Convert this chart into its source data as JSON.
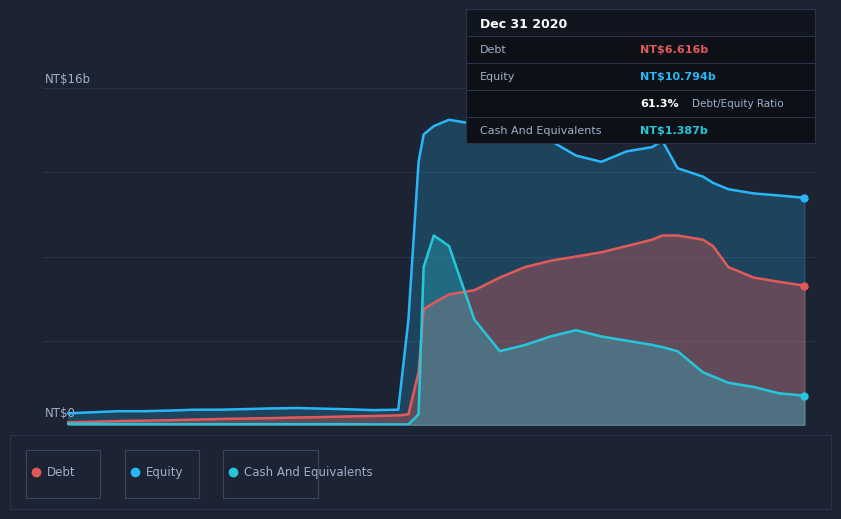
{
  "background_color": "#1c2333",
  "plot_bg_color": "#1c2333",
  "debt_color": "#e05a5a",
  "equity_color": "#29b6f6",
  "cash_color": "#26c6da",
  "grid_color": "#2a3347",
  "text_color": "#a0b0c8",
  "tooltip_bg": "#0d1117",
  "tooltip_border": "#2a3347",
  "title": "Dec 31 2020",
  "debt_label": "Debt",
  "equity_label": "Equity",
  "cash_label": "Cash And Equivalents",
  "debt_value": "NT$6.616b",
  "equity_value": "NT$10.794b",
  "ratio_value": "61.3%",
  "ratio_label": "Debt/Equity Ratio",
  "cash_value": "NT$1.387b",
  "x_years": [
    2013.75,
    2014.0,
    2014.25,
    2014.5,
    2014.75,
    2015.0,
    2015.25,
    2015.5,
    2015.75,
    2016.0,
    2016.25,
    2016.5,
    2016.75,
    2017.0,
    2017.1,
    2017.2,
    2017.25,
    2017.35,
    2017.5,
    2017.75,
    2018.0,
    2018.25,
    2018.5,
    2018.75,
    2019.0,
    2019.25,
    2019.5,
    2019.6,
    2019.75,
    2020.0,
    2020.1,
    2020.25,
    2020.5,
    2020.75,
    2021.0
  ],
  "equity_data": [
    0.55,
    0.6,
    0.65,
    0.65,
    0.68,
    0.72,
    0.72,
    0.75,
    0.78,
    0.8,
    0.77,
    0.74,
    0.7,
    0.72,
    5.0,
    12.5,
    13.8,
    14.2,
    14.5,
    14.3,
    15.0,
    14.8,
    13.5,
    12.8,
    12.5,
    13.0,
    13.2,
    13.5,
    12.2,
    11.8,
    11.5,
    11.2,
    11.0,
    10.9,
    10.794
  ],
  "debt_data": [
    0.12,
    0.15,
    0.18,
    0.2,
    0.22,
    0.25,
    0.28,
    0.3,
    0.32,
    0.35,
    0.37,
    0.4,
    0.42,
    0.45,
    0.5,
    2.5,
    5.5,
    5.8,
    6.2,
    6.4,
    7.0,
    7.5,
    7.8,
    8.0,
    8.2,
    8.5,
    8.8,
    9.0,
    9.0,
    8.8,
    8.5,
    7.5,
    7.0,
    6.8,
    6.616
  ],
  "cash_data": [
    0.05,
    0.05,
    0.04,
    0.04,
    0.03,
    0.03,
    0.03,
    0.03,
    0.03,
    0.03,
    0.03,
    0.03,
    0.02,
    0.02,
    0.02,
    0.5,
    7.5,
    9.0,
    8.5,
    5.0,
    3.5,
    3.8,
    4.2,
    4.5,
    4.2,
    4.0,
    3.8,
    3.7,
    3.5,
    2.5,
    2.3,
    2.0,
    1.8,
    1.5,
    1.387
  ],
  "xlim": [
    2013.5,
    2021.1
  ],
  "ylim": [
    0,
    17
  ],
  "xticks": [
    2014,
    2015,
    2016,
    2017,
    2018,
    2019,
    2020
  ],
  "ytick_top_label": "NT$16b",
  "ytick_bot_label": "NT$0",
  "legend_items": [
    "Debt",
    "Equity",
    "Cash And Equivalents"
  ],
  "legend_colors": [
    "#e05a5a",
    "#29b6f6",
    "#26c6da"
  ]
}
